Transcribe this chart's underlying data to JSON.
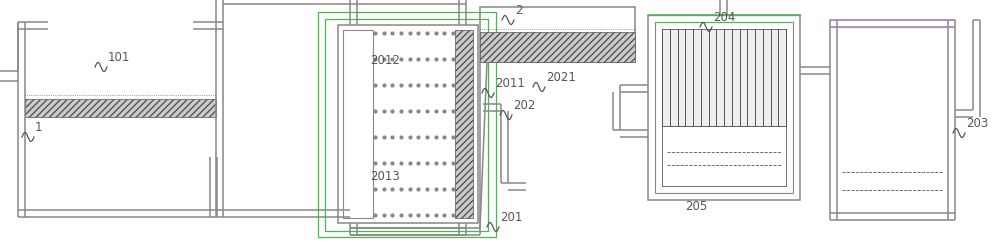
{
  "bg_color": "#ffffff",
  "line_color": "#888888",
  "dark_line": "#555555",
  "green_line": "#44bb44",
  "purple_line": "#bb88cc",
  "dot_color": "#888888",
  "font_size": 8.5
}
